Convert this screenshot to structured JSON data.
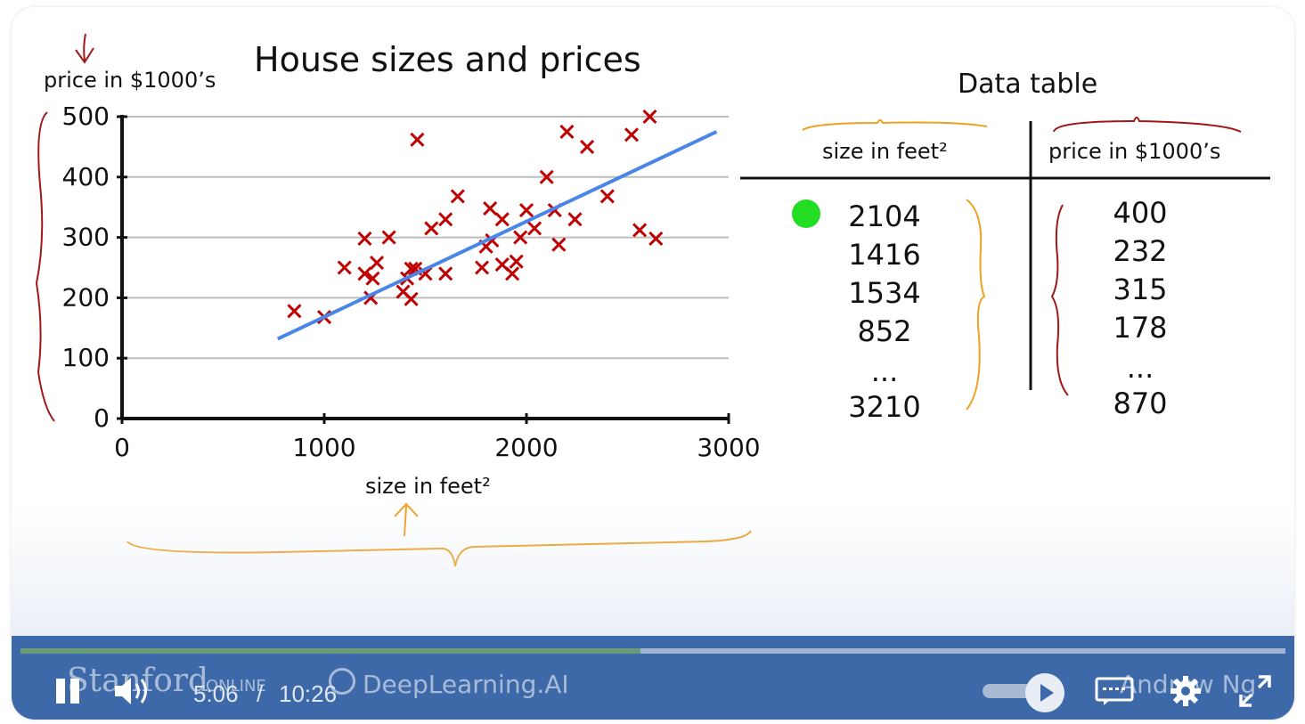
{
  "slide": {
    "title": "House sizes and prices",
    "ylabel": "price in $1000’s",
    "xlabel": "size in feet²",
    "table": {
      "title": "Data table",
      "col1_header": "size in feet²",
      "col2_header": "price in $1000’s",
      "col1_values": [
        "2104",
        "1416",
        "1534",
        "852",
        "...",
        "3210"
      ],
      "col2_values": [
        "400",
        "232",
        "315",
        "178",
        "...",
        "870"
      ]
    }
  },
  "chart_data": {
    "type": "scatter",
    "title": "House sizes and prices",
    "xlabel": "size in feet²",
    "ylabel": "price in $1000’s",
    "xlim": [
      0,
      3000
    ],
    "ylim": [
      0,
      500
    ],
    "xticks": [
      "0",
      "1000",
      "2000",
      "3000"
    ],
    "yticks": [
      "0",
      "100",
      "200",
      "300",
      "400",
      "500"
    ],
    "grid": "horizontal",
    "marker_color": "#c00000",
    "line_color": "#4a86e8",
    "points": [
      [
        852,
        178
      ],
      [
        1000,
        168
      ],
      [
        1100,
        250
      ],
      [
        1200,
        298
      ],
      [
        1200,
        240
      ],
      [
        1230,
        200
      ],
      [
        1240,
        232
      ],
      [
        1260,
        258
      ],
      [
        1320,
        300
      ],
      [
        1390,
        210
      ],
      [
        1410,
        232
      ],
      [
        1430,
        198
      ],
      [
        1430,
        248
      ],
      [
        1450,
        248
      ],
      [
        1460,
        462
      ],
      [
        1500,
        240
      ],
      [
        1530,
        315
      ],
      [
        1600,
        330
      ],
      [
        1600,
        240
      ],
      [
        1660,
        368
      ],
      [
        1780,
        250
      ],
      [
        1800,
        285
      ],
      [
        1820,
        348
      ],
      [
        1830,
        295
      ],
      [
        1880,
        330
      ],
      [
        1880,
        255
      ],
      [
        1930,
        240
      ],
      [
        1950,
        260
      ],
      [
        1970,
        300
      ],
      [
        2000,
        345
      ],
      [
        2040,
        315
      ],
      [
        2100,
        400
      ],
      [
        2140,
        345
      ],
      [
        2160,
        288
      ],
      [
        2200,
        475
      ],
      [
        2240,
        330
      ],
      [
        2300,
        450
      ],
      [
        2400,
        368
      ],
      [
        2520,
        470
      ],
      [
        2560,
        312
      ],
      [
        2610,
        500
      ],
      [
        2640,
        298
      ]
    ],
    "fit_line": [
      [
        770,
        132
      ],
      [
        2940,
        475
      ]
    ]
  },
  "player": {
    "time_current": "5:06",
    "time_separator": "/",
    "time_total": "10:26",
    "progress": 0.49,
    "watermark_left": "Stanford",
    "watermark_online": "ONLINE",
    "watermark_center": "DeepLearning.AI",
    "watermark_right": "Andrew Ng"
  },
  "icons": {
    "pause": "pause-icon",
    "volume": "volume-icon",
    "speed": "speed-play-icon",
    "captions": "captions-icon",
    "settings": "gear-icon",
    "fullscreen": "fullscreen-icon"
  },
  "colors": {
    "controls_bar": "#3d69a8",
    "marker": "#c00000",
    "fit_line": "#4a86e8",
    "annotation_orange": "#f0a020",
    "annotation_red": "#a01818",
    "cursor_dot": "#22dd22"
  }
}
